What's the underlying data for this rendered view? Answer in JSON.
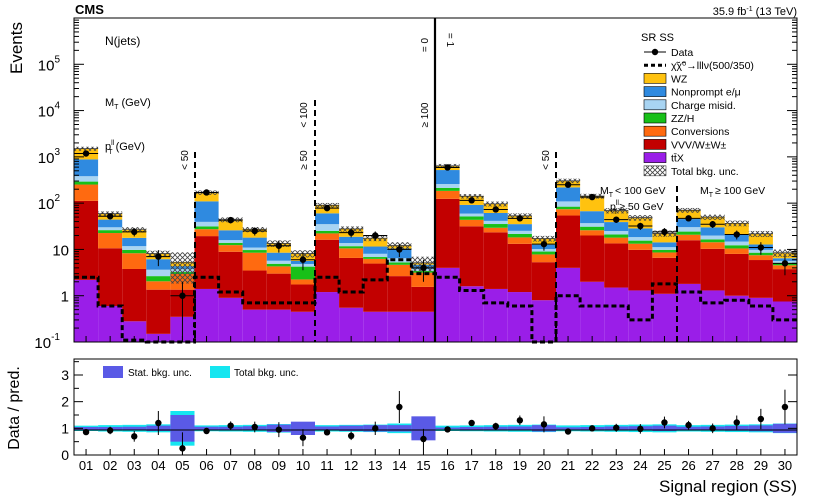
{
  "header": {
    "experiment": "CMS",
    "lumi": "35.9 fb",
    "lumi_sup": "-1",
    "energy": "(13 TeV)"
  },
  "chart_data": {
    "type": "bar",
    "stacked": true,
    "log_y": true,
    "title": "SR SS",
    "xlabel": "Signal region (SS)",
    "ylabel": "Events",
    "ylim": [
      0.1,
      1000000
    ],
    "y_ticks": [
      {
        "base": "10",
        "exp": "-1",
        "value": 0.1
      },
      {
        "base": "1",
        "exp": "",
        "value": 1
      },
      {
        "base": "10",
        "exp": "",
        "value": 10
      },
      {
        "base": "10",
        "exp": "2",
        "value": 100
      },
      {
        "base": "10",
        "exp": "3",
        "value": 1000
      },
      {
        "base": "10",
        "exp": "4",
        "value": 10000
      },
      {
        "base": "10",
        "exp": "5",
        "value": 100000
      }
    ],
    "categories": [
      "01",
      "02",
      "03",
      "04",
      "05",
      "06",
      "07",
      "08",
      "09",
      "10",
      "11",
      "12",
      "13",
      "14",
      "15",
      "16",
      "17",
      "18",
      "19",
      "20",
      "21",
      "22",
      "23",
      "24",
      "25",
      "26",
      "27",
      "28",
      "29",
      "30"
    ],
    "series": [
      {
        "name": "ttX",
        "legend": "tt̄X",
        "color": "#9a1ee8",
        "values": [
          2.2,
          0.6,
          0.28,
          0.15,
          0.35,
          1.4,
          0.9,
          0.5,
          0.5,
          0.45,
          1.2,
          0.55,
          0.45,
          0.45,
          0.45,
          4.0,
          1.6,
          1.4,
          1.2,
          0.8,
          4.0,
          2.0,
          1.5,
          1.3,
          1.1,
          1.8,
          1.3,
          1.0,
          0.9,
          0.75
        ]
      },
      {
        "name": "VVV/W±W±",
        "legend": "VVV/W±W±",
        "color": "#c20000",
        "values": [
          110,
          10,
          3.5,
          1.2,
          1.0,
          18,
          8,
          3.0,
          2.5,
          1.3,
          15,
          6,
          4.5,
          2.2,
          1.1,
          120,
          30,
          22,
          12,
          4.5,
          50,
          18,
          12,
          8.5,
          5.5,
          14,
          9,
          7,
          5,
          3.0
        ]
      },
      {
        "name": "Conversions",
        "legend": "Conversions",
        "color": "#ff6a10",
        "values": [
          140,
          12,
          4.5,
          0.7,
          1.6,
          8,
          3.5,
          5.0,
          1.3,
          0.5,
          6,
          4,
          1.3,
          2.0,
          1.6,
          60,
          12,
          6,
          5,
          2.5,
          20,
          6,
          4.5,
          3.5,
          2.0,
          5,
          4,
          2.5,
          1.6,
          0.8
        ]
      },
      {
        "name": "ZZ/H",
        "legend": "ZZ/H",
        "color": "#18c018",
        "values": [
          40,
          3.5,
          1.5,
          0.6,
          0.3,
          4,
          1.5,
          1.2,
          0.6,
          2.0,
          3,
          1.2,
          0.6,
          0.6,
          0.3,
          30,
          8,
          6,
          3.5,
          1.2,
          10,
          5,
          3.0,
          2.2,
          1.2,
          3.5,
          2.2,
          1.8,
          1.0,
          0.6
        ]
      },
      {
        "name": "Charge misid.",
        "legend": "Charge misid.",
        "color": "#a8d4f2",
        "values": [
          90,
          4,
          2.0,
          1.0,
          0.5,
          8,
          2.0,
          1.3,
          0.8,
          0.6,
          10,
          2.0,
          1.2,
          1.2,
          0.3,
          45,
          8,
          6,
          3.5,
          1.2,
          25,
          6,
          4.0,
          3.0,
          1.4,
          6,
          3.5,
          2.5,
          1.3,
          0.5
        ]
      },
      {
        "name": "Nonprompt e/μ",
        "legend": "Nonprompt e/μ",
        "color": "#2f8ae0",
        "values": [
          500,
          14,
          6,
          2.5,
          0.6,
          70,
          10,
          7,
          2.8,
          0.8,
          25,
          5,
          3.5,
          4.0,
          0.9,
          260,
          32,
          20,
          10,
          2.5,
          110,
          30,
          14,
          10,
          3.0,
          15,
          10,
          6,
          3.0,
          0.8
        ]
      },
      {
        "name": "WZ",
        "legend": "WZ",
        "color": "#ffc20f",
        "values": [
          620,
          15,
          9,
          2.0,
          0.9,
          60,
          18,
          9,
          5,
          2.5,
          30,
          9,
          6,
          1.7,
          0.5,
          120,
          50,
          35,
          18,
          4.5,
          85,
          75,
          30,
          20,
          8,
          25,
          20,
          16,
          9,
          2.0
        ]
      }
    ],
    "data": {
      "name": "Data",
      "legend": "Data",
      "values": [
        1180,
        52,
        24,
        7,
        1,
        170,
        43,
        25,
        12,
        6,
        78,
        23,
        20,
        10,
        4,
        590,
        115,
        73,
        47,
        13,
        250,
        135,
        44,
        32,
        24,
        47,
        35,
        21,
        11,
        5
      ]
    },
    "signal": {
      "name": "signal",
      "legend": "χ̃χ̃⁰→lllν(500/350)",
      "color": "#000000",
      "values": [
        2.5,
        0.6,
        0.11,
        0.1,
        0.1,
        2.5,
        1.2,
        0.7,
        0.7,
        0.7,
        2.5,
        1.2,
        2.2,
        6,
        3,
        2.5,
        1.3,
        0.7,
        0.6,
        0.1,
        1.0,
        0.6,
        0.6,
        0.3,
        1.8,
        1.2,
        0.7,
        0.8,
        0.6,
        0.3
      ]
    },
    "unc_legend": "Total bkg. unc.",
    "text_annotations": {
      "njets": "N(jets)",
      "mt": "M",
      "mt_sub": "T",
      "mt_unit": " (GeV)",
      "ptll": "p",
      "ptll_sup": "ll",
      "ptll_sub": "T",
      "ptll_unit": " (GeV)",
      "lt50": "< 50",
      "ge50": "≥ 50",
      "lt100": "< 100",
      "ge100": "≥ 100",
      "eq0": "= 0",
      "eq1": "= 1",
      "lt50b": "< 50",
      "mt_lt100": "< 100 GeV",
      "ptll_ge50": "≥ 50 GeV",
      "mt_ge100": "≥ 100 GeV"
    },
    "ratio": {
      "ylabel": "Data / pred.",
      "ylim": [
        0,
        3.6
      ],
      "y_ticks": [
        0,
        1,
        2,
        3
      ],
      "values": [
        0.86,
        0.92,
        0.7,
        1.2,
        0.25,
        0.9,
        1.1,
        1.05,
        0.95,
        0.65,
        0.85,
        0.72,
        1.0,
        1.8,
        0.6,
        0.96,
        1.2,
        1.08,
        1.3,
        1.15,
        0.88,
        1.0,
        1.02,
        0.98,
        1.22,
        1.12,
        1.0,
        1.22,
        1.35,
        1.8
      ],
      "errors": [
        0.05,
        0.14,
        0.2,
        0.45,
        0.6,
        0.07,
        0.16,
        0.2,
        0.28,
        0.32,
        0.1,
        0.16,
        0.25,
        0.6,
        0.38,
        0.04,
        0.11,
        0.13,
        0.18,
        0.3,
        0.06,
        0.09,
        0.15,
        0.18,
        0.22,
        0.16,
        0.18,
        0.26,
        0.38,
        0.65
      ],
      "stat_unc": [
        0.05,
        0.05,
        0.06,
        0.1,
        0.5,
        0.06,
        0.06,
        0.08,
        0.14,
        0.25,
        0.07,
        0.1,
        0.12,
        0.12,
        0.45,
        0.03,
        0.05,
        0.06,
        0.07,
        0.12,
        0.04,
        0.05,
        0.07,
        0.08,
        0.1,
        0.06,
        0.07,
        0.09,
        0.11,
        0.17
      ],
      "total_unc": [
        0.1,
        0.12,
        0.13,
        0.15,
        0.65,
        0.11,
        0.12,
        0.13,
        0.16,
        0.18,
        0.12,
        0.13,
        0.14,
        0.18,
        0.35,
        0.1,
        0.11,
        0.12,
        0.13,
        0.14,
        0.11,
        0.12,
        0.13,
        0.14,
        0.15,
        0.12,
        0.13,
        0.14,
        0.15,
        0.18
      ],
      "legend_stat": "Stat. bkg. unc.",
      "legend_total": "Total bkg. unc.",
      "stat_color": "#5a5ae6",
      "total_color": "#15e6f0"
    }
  }
}
